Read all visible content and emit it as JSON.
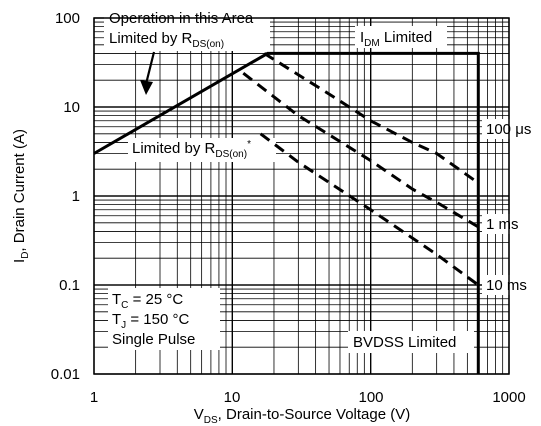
{
  "chart_data": {
    "type": "line",
    "scale": {
      "x": "log",
      "y": "log"
    },
    "xlim": [
      1,
      1000
    ],
    "ylim": [
      0.01,
      100
    ],
    "grid": true,
    "x_tick_labels": [
      "1",
      "10",
      "100",
      "1000"
    ],
    "y_tick_labels": [
      "0.01",
      "0.1",
      "1",
      "10",
      "100"
    ],
    "xlabel": {
      "main": "V",
      "sub": "DS",
      "rest": ", Drain-to-Source Voltage (V)"
    },
    "ylabel": {
      "main": "I",
      "sub": "D",
      "rest": ", Drain Current (A)"
    },
    "series": [
      {
        "name": "Operation in this Area Limited by RDS(on)",
        "style": "solid",
        "points": [
          [
            1,
            3
          ],
          [
            18,
            40
          ],
          [
            600,
            40
          ],
          [
            600,
            0.01
          ]
        ]
      },
      {
        "name": "100 μs",
        "style": "dashed",
        "points": [
          [
            17,
            40
          ],
          [
            50,
            14
          ],
          [
            100,
            7
          ],
          [
            200,
            4
          ],
          [
            300,
            3
          ],
          [
            600,
            1.4
          ]
        ]
      },
      {
        "name": "1 ms",
        "style": "dashed",
        "points": [
          [
            12,
            24
          ],
          [
            30,
            8
          ],
          [
            100,
            2.5
          ],
          [
            200,
            1.2
          ],
          [
            320,
            0.8
          ],
          [
            600,
            0.45
          ]
        ]
      },
      {
        "name": "10 ms",
        "style": "dashed",
        "points": [
          [
            16,
            5
          ],
          [
            30,
            2.4
          ],
          [
            100,
            0.7
          ],
          [
            300,
            0.22
          ],
          [
            600,
            0.1
          ]
        ]
      }
    ],
    "annotations": {
      "operation_area_line1": "Operation in this Area",
      "operation_area_line2": {
        "main": "Limited by R",
        "sub": "DS(on)"
      },
      "rdson_limit": {
        "main": "Limited by R",
        "sub": "DS(on)",
        "sup": "*"
      },
      "idm_limit": {
        "main": "I",
        "sub": "DM",
        "rest": " Limited"
      },
      "bvdss_limit": "BVDSS Limited",
      "curve_100us": "100 μs",
      "curve_1ms": "1 ms",
      "curve_10ms": "10 ms",
      "tc": {
        "main": "T",
        "sub": "C",
        "rest": " = 25 °C"
      },
      "tj": {
        "main": "T",
        "sub": "J",
        "rest": " = 150 °C"
      },
      "pulse": "Single Pulse"
    }
  }
}
